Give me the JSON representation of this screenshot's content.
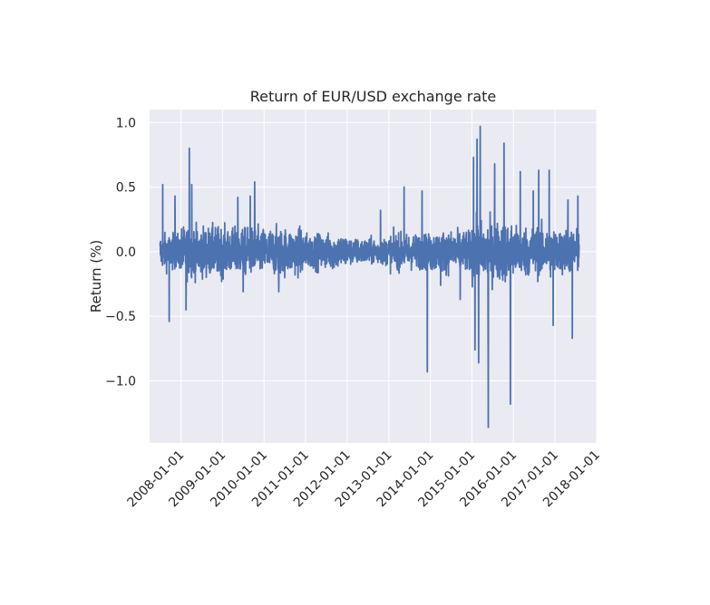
{
  "chart_data": {
    "type": "line",
    "title": "Return of EUR/USD exchange rate",
    "xlabel": "",
    "ylabel": "Return (%)",
    "xlim": [
      "2007-04-01",
      "2018-01-01"
    ],
    "ylim": [
      -1.48,
      1.1
    ],
    "grid": true,
    "legend": "none",
    "series_color": "#4c72b0",
    "background_color": "#eaeaf2",
    "grid_color": "#ffffff",
    "x_ticks": [
      "2008-01-01",
      "2009-01-01",
      "2010-01-01",
      "2011-01-01",
      "2012-01-01",
      "2013-01-01",
      "2014-01-01",
      "2015-01-01",
      "2016-01-01",
      "2017-01-01",
      "2018-01-01"
    ],
    "y_ticks": [
      1.0,
      0.5,
      0.0,
      -0.5,
      -1.0
    ],
    "y_tick_labels": [
      "1.0",
      "0.5",
      "0.0",
      "−0.5",
      "−1.0"
    ],
    "date_range": [
      "2007-07-02",
      "2017-07-31"
    ],
    "noise_amplitude_by_year": [
      {
        "year": "2007",
        "amp": 0.12
      },
      {
        "year": "2008",
        "amp": 0.17
      },
      {
        "year": "2009",
        "amp": 0.16
      },
      {
        "year": "2010",
        "amp": 0.16
      },
      {
        "year": "2011",
        "amp": 0.12
      },
      {
        "year": "2012",
        "amp": 0.09
      },
      {
        "year": "2013",
        "amp": 0.12
      },
      {
        "year": "2014",
        "amp": 0.14
      },
      {
        "year": "2015",
        "amp": 0.2
      },
      {
        "year": "2016",
        "amp": 0.17
      },
      {
        "year": "2017",
        "amp": 0.15
      }
    ],
    "notable_points": [
      {
        "x": "2007-07-25",
        "y": 0.52
      },
      {
        "x": "2007-09-20",
        "y": -0.54
      },
      {
        "x": "2007-11-10",
        "y": 0.43
      },
      {
        "x": "2008-02-15",
        "y": -0.45
      },
      {
        "x": "2008-03-15",
        "y": 0.8
      },
      {
        "x": "2008-04-05",
        "y": 0.52
      },
      {
        "x": "2009-05-15",
        "y": 0.42
      },
      {
        "x": "2009-09-01",
        "y": 0.43
      },
      {
        "x": "2009-10-10",
        "y": 0.54
      },
      {
        "x": "2009-07-01",
        "y": -0.31
      },
      {
        "x": "2010-05-10",
        "y": -0.31
      },
      {
        "x": "2012-10-20",
        "y": 0.32
      },
      {
        "x": "2013-05-15",
        "y": 0.5
      },
      {
        "x": "2013-10-20",
        "y": 0.47
      },
      {
        "x": "2013-12-05",
        "y": -0.93
      },
      {
        "x": "2014-04-01",
        "y": -0.26
      },
      {
        "x": "2014-09-20",
        "y": -0.37
      },
      {
        "x": "2015-01-15",
        "y": 0.73
      },
      {
        "x": "2015-01-28",
        "y": -0.76
      },
      {
        "x": "2015-02-15",
        "y": 0.87
      },
      {
        "x": "2015-03-01",
        "y": -0.86
      },
      {
        "x": "2015-03-15",
        "y": 0.97
      },
      {
        "x": "2015-05-25",
        "y": -1.36
      },
      {
        "x": "2015-07-20",
        "y": 0.68
      },
      {
        "x": "2015-10-10",
        "y": 0.84
      },
      {
        "x": "2015-12-05",
        "y": -1.18
      },
      {
        "x": "2016-03-01",
        "y": 0.62
      },
      {
        "x": "2016-06-23",
        "y": 0.47
      },
      {
        "x": "2016-08-10",
        "y": 0.63
      },
      {
        "x": "2016-11-10",
        "y": 0.63
      },
      {
        "x": "2016-12-15",
        "y": -0.57
      },
      {
        "x": "2017-04-24",
        "y": 0.4
      },
      {
        "x": "2017-06-01",
        "y": -0.67
      },
      {
        "x": "2017-07-20",
        "y": 0.43
      }
    ]
  }
}
